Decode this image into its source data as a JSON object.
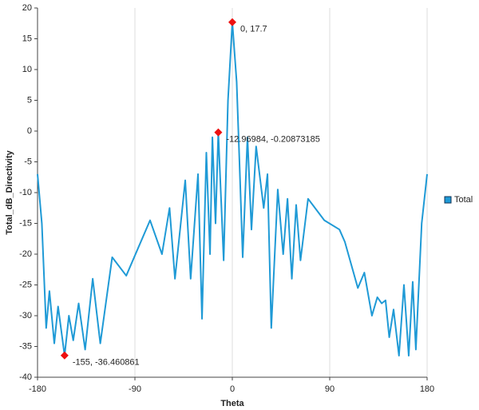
{
  "chart_data": {
    "type": "line",
    "x_label": "Theta",
    "y_label": "Total_dB_Directivity",
    "x": [
      -180,
      -176,
      -172,
      -169,
      -164.5,
      -161,
      -155,
      -151,
      -147,
      -142,
      -136,
      -129,
      -122,
      -111,
      -98,
      -76,
      -65,
      -58,
      -53,
      -43.5,
      -38.5,
      -31.7,
      -28,
      -24,
      -20.6,
      -18.4,
      -15.5,
      -12.96984,
      -8,
      -4,
      0,
      4,
      6.6,
      9.6,
      14,
      17.7,
      22,
      29,
      32.5,
      36,
      42,
      47,
      51,
      55,
      59,
      63,
      70,
      85,
      99,
      104,
      116,
      122,
      129,
      134,
      138,
      141.6,
      145,
      149,
      154,
      158.6,
      163,
      166.7,
      169.6,
      175,
      180
    ],
    "series": [
      {
        "name": "Total",
        "color": "#1f9ad6",
        "values": [
          -7,
          -15,
          -32,
          -26,
          -34.5,
          -28.5,
          -36.460861,
          -30,
          -34,
          -28,
          -35.5,
          -24,
          -34.5,
          -20.5,
          -23.5,
          -14.5,
          -20,
          -12.5,
          -24,
          -8,
          -24,
          -7,
          -30.5,
          -3.5,
          -20,
          -1,
          -15,
          -0.20873185,
          -21,
          5,
          17.7,
          8,
          -5,
          -20.5,
          -1,
          -16,
          -2.5,
          -12.5,
          -7,
          -32,
          -9.5,
          -20,
          -11,
          -24,
          -12,
          -21,
          -11,
          -14.5,
          -16,
          -18,
          -25.5,
          -23,
          -30,
          -27,
          -28,
          -27.5,
          -33.5,
          -29,
          -36.5,
          -25,
          -36.5,
          -24.5,
          -35.5,
          -15,
          -7
        ]
      }
    ],
    "markers": [
      {
        "x": 0,
        "y": 17.7,
        "label": "0, 17.7"
      },
      {
        "x": -12.96984,
        "y": -0.20873185,
        "label": "-12.96984, -0.20873185"
      },
      {
        "x": -155,
        "y": -36.460861,
        "label": "-155, -36.460861"
      }
    ],
    "marker_color": "#ee1111",
    "xlim": [
      -180,
      180
    ],
    "xticks": [
      -180,
      -90,
      0,
      90,
      180
    ],
    "ylim": [
      -40,
      20
    ],
    "yticks": [
      -40,
      -35,
      -30,
      -25,
      -20,
      -15,
      -10,
      -5,
      0,
      5,
      10,
      15,
      20
    ],
    "grid": "x",
    "legend": "right"
  }
}
